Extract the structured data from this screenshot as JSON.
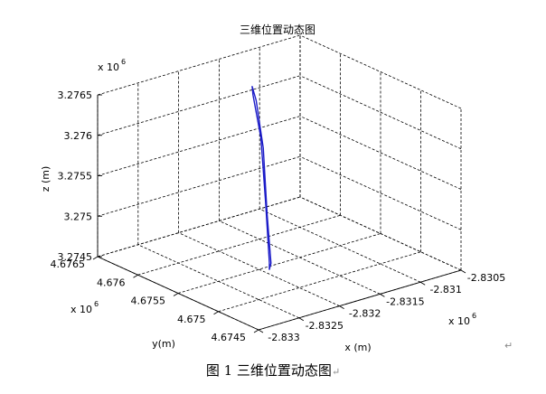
{
  "chart_data": {
    "type": "line3d",
    "title": "三维位置动态图",
    "xlabel": "x (m)",
    "ylabel": "y(m)",
    "zlabel": "z (m)",
    "xlim": [
      -2.833,
      -2.8305
    ],
    "ylim": [
      4.6745,
      4.6765
    ],
    "zlim": [
      3.2745,
      3.2765
    ],
    "x_multiplier": "x 10",
    "x_multiplier_exp": "6",
    "y_multiplier": "x 10",
    "y_multiplier_exp": "6",
    "z_multiplier": "x 10",
    "z_multiplier_exp": "6",
    "x_ticks": [
      "-2.833",
      "-2.8325",
      "-2.832",
      "-2.8315",
      "-2.831",
      "-2.8305"
    ],
    "y_ticks": [
      "4.6745",
      "4.675",
      "4.6755",
      "4.676",
      "4.6765"
    ],
    "z_ticks": [
      "3.2745",
      "3.275",
      "3.2755",
      "3.276",
      "3.2765"
    ],
    "grid": true,
    "series": [
      {
        "color": "#1c1cc8",
        "points": [
          [
            -2.83232,
            4.67505,
            3.27488
          ],
          [
            -2.832,
            4.67542,
            3.27538
          ],
          [
            -2.83168,
            4.6758,
            3.2759
          ],
          [
            -2.83146,
            4.67612,
            3.27622
          ],
          [
            -2.83141,
            4.67618,
            3.27628
          ],
          [
            -2.83145,
            4.67609,
            3.27616
          ],
          [
            -2.8317,
            4.67575,
            3.2758
          ],
          [
            -2.83205,
            4.67535,
            3.27527
          ],
          [
            -2.83229,
            4.67506,
            3.27486
          ],
          [
            -2.83235,
            4.67502,
            3.27482
          ],
          [
            -2.83232,
            4.67505,
            3.27488
          ]
        ]
      }
    ]
  },
  "caption": {
    "text": "图 1  三维位置动态图",
    "mark": "↵"
  },
  "para_mark": "↵"
}
